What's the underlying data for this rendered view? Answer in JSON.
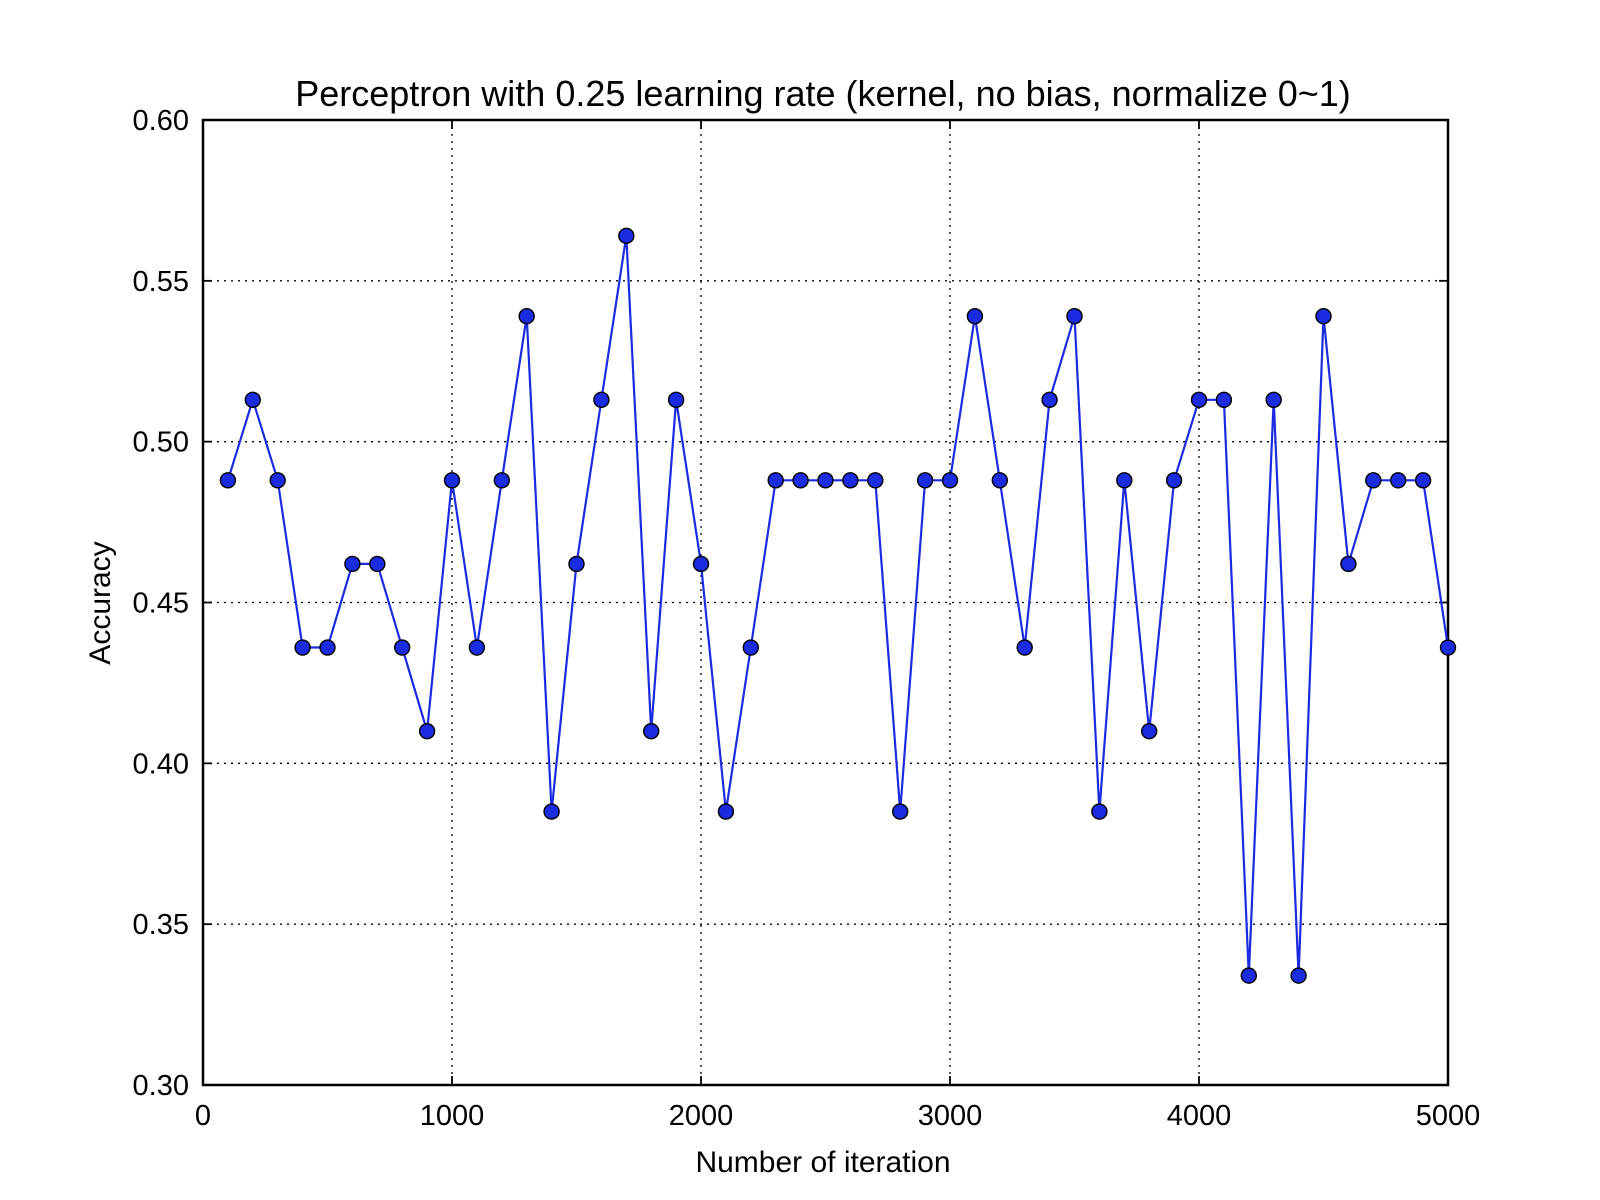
{
  "chart_data": {
    "type": "line",
    "title": "Perceptron with 0.25 learning rate (kernel, no bias, normalize 0~1)",
    "xlabel": "Number of iteration",
    "ylabel": "Accuracy",
    "xlim": [
      0,
      5000
    ],
    "ylim": [
      0.3,
      0.6
    ],
    "grid": true,
    "x_ticks": [
      0,
      1000,
      2000,
      3000,
      4000,
      5000
    ],
    "x_tick_labels": [
      "0",
      "1000",
      "2000",
      "3000",
      "4000",
      "5000"
    ],
    "y_ticks": [
      0.3,
      0.35,
      0.4,
      0.45,
      0.5,
      0.55,
      0.6
    ],
    "y_tick_labels": [
      "0.30",
      "0.35",
      "0.40",
      "0.45",
      "0.50",
      "0.55",
      "0.60"
    ],
    "series": [
      {
        "color": "#1a2be0",
        "marker": "circle",
        "x": [
          100,
          200,
          300,
          400,
          500,
          600,
          700,
          800,
          900,
          1000,
          1100,
          1200,
          1300,
          1400,
          1500,
          1600,
          1700,
          1800,
          1900,
          2000,
          2100,
          2200,
          2300,
          2400,
          2500,
          2600,
          2700,
          2800,
          2900,
          3000,
          3100,
          3200,
          3300,
          3400,
          3500,
          3600,
          3700,
          3800,
          3900,
          4000,
          4100,
          4200,
          4300,
          4400,
          4500,
          4600,
          4700,
          4800,
          4900,
          5000
        ],
        "y": [
          0.488,
          0.513,
          0.488,
          0.436,
          0.436,
          0.462,
          0.462,
          0.436,
          0.41,
          0.488,
          0.436,
          0.488,
          0.539,
          0.385,
          0.462,
          0.513,
          0.564,
          0.41,
          0.513,
          0.462,
          0.385,
          0.436,
          0.488,
          0.488,
          0.488,
          0.488,
          0.488,
          0.385,
          0.488,
          0.488,
          0.539,
          0.488,
          0.436,
          0.513,
          0.539,
          0.385,
          0.488,
          0.41,
          0.488,
          0.513,
          0.513,
          0.334,
          0.513,
          0.334,
          0.539,
          0.462,
          0.488,
          0.488,
          0.488,
          0.436
        ]
      }
    ]
  }
}
